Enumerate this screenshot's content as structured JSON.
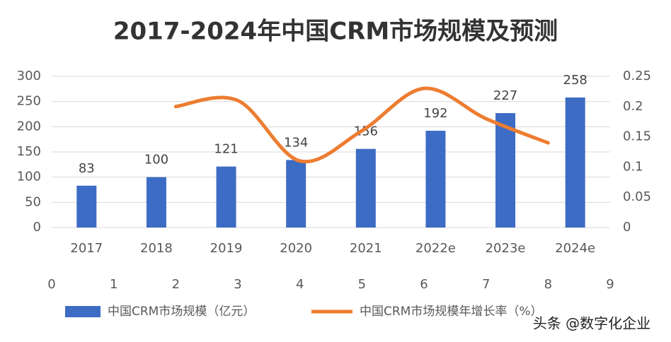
{
  "chart_data": {
    "type": "bar",
    "title": "2017-2024年中国CRM市场规模及预测",
    "categories": [
      "2017",
      "2018",
      "2019",
      "2020",
      "2021",
      "2022e",
      "2023e",
      "2024e"
    ],
    "series": [
      {
        "name": "中国CRM市场规模（亿元）",
        "type": "bar",
        "color": "#3d6cc4",
        "values": [
          83,
          100,
          121,
          134,
          156,
          192,
          227,
          258
        ]
      },
      {
        "name": "中国CRM市场规模年增长率（%）",
        "type": "line",
        "axis": "y2",
        "color": "#ed7d31",
        "x": [
          2,
          3,
          4,
          5,
          6,
          7,
          8
        ],
        "values": [
          0.2,
          0.21,
          0.11,
          0.16,
          0.23,
          0.18,
          0.14
        ]
      }
    ],
    "ylim": [
      0,
      300
    ],
    "yticks": [
      0,
      50,
      100,
      150,
      200,
      250,
      300
    ],
    "y2lim": [
      0,
      0.25
    ],
    "y2ticks": [
      0,
      0.05,
      0.1,
      0.15,
      0.2,
      0.25
    ],
    "x2lim": [
      0,
      9
    ],
    "x2ticks": [
      0,
      1,
      2,
      3,
      4,
      5,
      6,
      7,
      8,
      9
    ],
    "grid": true,
    "watermark": "头条 @数字化企业"
  }
}
